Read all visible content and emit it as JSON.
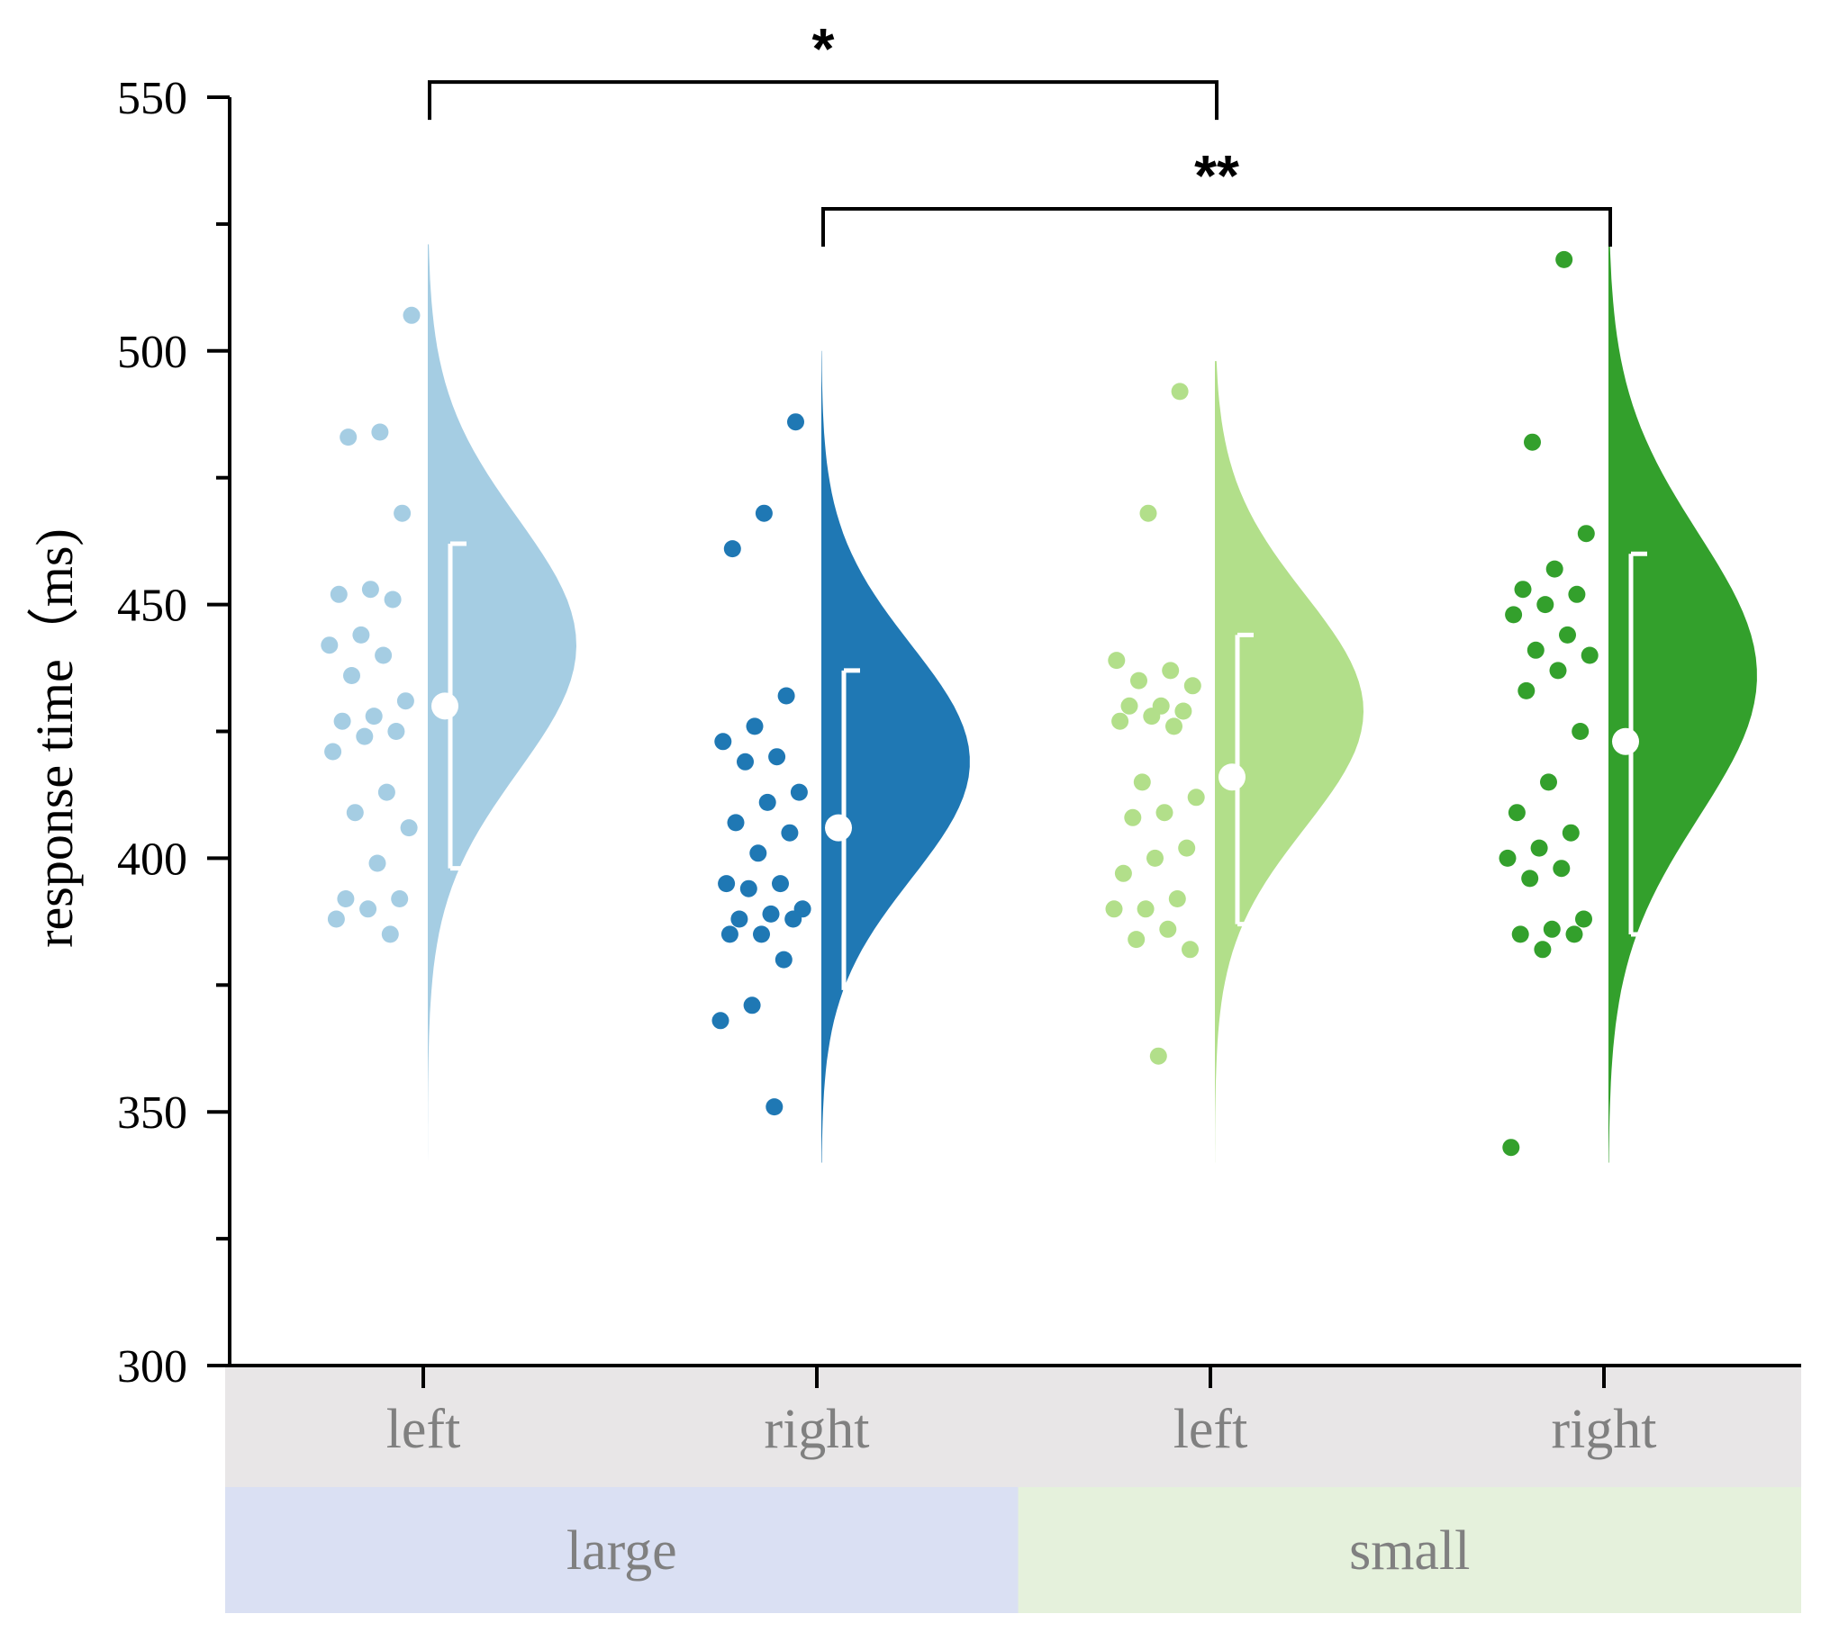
{
  "chart_data": {
    "type": "raincloud",
    "ylabel": "response time（ms)",
    "ylim": [
      300,
      550
    ],
    "yticks": [
      300,
      350,
      400,
      450,
      500,
      550
    ],
    "groups": [
      {
        "name": "large",
        "color": "#dae0f3",
        "conditions": [
          0,
          1
        ]
      },
      {
        "name": "small",
        "color": "#e5f1dc",
        "conditions": [
          2,
          3
        ]
      }
    ],
    "conditions": [
      {
        "label": "left",
        "group": "large",
        "color": "#a5cde3",
        "mean": 430,
        "ci": [
          398,
          462
        ],
        "density_peak": 442,
        "density_sd": 25,
        "density_range": [
          340,
          521
        ],
        "points": [
          507,
          484,
          483,
          468,
          453,
          452,
          451,
          444,
          442,
          440,
          436,
          431,
          428,
          427,
          425,
          424,
          421,
          413,
          409,
          406,
          399,
          392,
          392,
          390,
          388,
          385
        ]
      },
      {
        "label": "right",
        "group": "large",
        "color": "#1f78b4",
        "mean": 406,
        "ci": [
          374,
          437
        ],
        "density_peak": 419,
        "density_sd": 23,
        "density_range": [
          340,
          500
        ],
        "points": [
          486,
          468,
          461,
          432,
          426,
          423,
          420,
          419,
          413,
          411,
          407,
          405,
          401,
          395,
          395,
          394,
          390,
          389,
          388,
          388,
          385,
          385,
          380,
          371,
          368,
          351
        ]
      },
      {
        "label": "left",
        "group": "small",
        "color": "#b2df8a",
        "mean": 416,
        "ci": [
          387,
          444
        ],
        "density_peak": 429,
        "density_sd": 23,
        "density_range": [
          340,
          498
        ],
        "points": [
          492,
          468,
          439,
          437,
          435,
          434,
          430,
          430,
          429,
          428,
          427,
          426,
          415,
          412,
          409,
          408,
          402,
          400,
          397,
          392,
          390,
          390,
          386,
          384,
          382,
          361
        ]
      },
      {
        "label": "right",
        "group": "small",
        "color": "#33a02c",
        "mean": 423,
        "ci": [
          385,
          460
        ],
        "density_peak": 436,
        "density_sd": 28,
        "density_range": [
          340,
          521
        ],
        "points": [
          518,
          482,
          464,
          457,
          453,
          452,
          450,
          448,
          444,
          441,
          440,
          437,
          433,
          425,
          415,
          409,
          405,
          402,
          400,
          398,
          396,
          388,
          386,
          385,
          385,
          382,
          343
        ]
      }
    ],
    "significance": [
      {
        "from": 0,
        "to": 2,
        "label": "*",
        "y": 553
      },
      {
        "from": 1,
        "to": 3,
        "label": "**",
        "y": 528
      }
    ]
  }
}
